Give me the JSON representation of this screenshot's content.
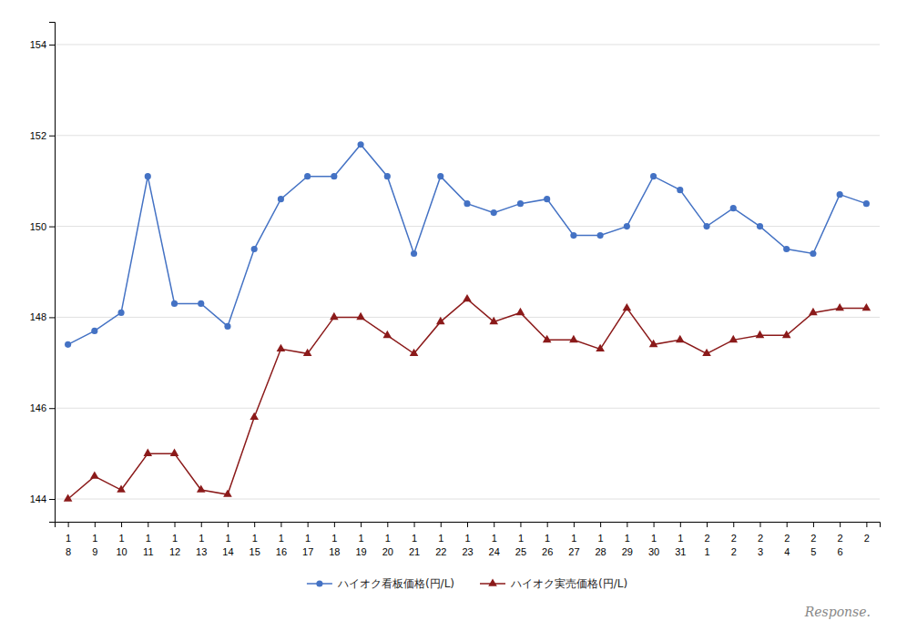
{
  "chart_data": {
    "type": "line",
    "categories": [
      [
        "1",
        "8"
      ],
      [
        "1",
        "9"
      ],
      [
        "1",
        "10"
      ],
      [
        "1",
        "11"
      ],
      [
        "1",
        "12"
      ],
      [
        "1",
        "13"
      ],
      [
        "1",
        "14"
      ],
      [
        "1",
        "15"
      ],
      [
        "1",
        "16"
      ],
      [
        "1",
        "17"
      ],
      [
        "1",
        "18"
      ],
      [
        "1",
        "19"
      ],
      [
        "1",
        "20"
      ],
      [
        "1",
        "21"
      ],
      [
        "1",
        "22"
      ],
      [
        "1",
        "23"
      ],
      [
        "1",
        "24"
      ],
      [
        "1",
        "25"
      ],
      [
        "1",
        "26"
      ],
      [
        "1",
        "27"
      ],
      [
        "1",
        "28"
      ],
      [
        "1",
        "29"
      ],
      [
        "1",
        "30"
      ],
      [
        "1",
        "31"
      ],
      [
        "2",
        "1"
      ],
      [
        "2",
        "2"
      ],
      [
        "2",
        "3"
      ],
      [
        "2",
        "4"
      ],
      [
        "2",
        "5"
      ],
      [
        "2",
        "6"
      ],
      [
        "2"
      ]
    ],
    "series": [
      {
        "name": "ハイオク看板価格(円/L)",
        "color": "#4472c4",
        "marker": "circle",
        "values": [
          147.4,
          147.7,
          148.1,
          151.1,
          148.3,
          148.3,
          147.8,
          149.5,
          150.6,
          151.1,
          151.1,
          151.8,
          151.1,
          149.4,
          151.1,
          150.5,
          150.3,
          150.5,
          150.6,
          149.8,
          149.8,
          150.0,
          151.1,
          150.8,
          150.0,
          150.4,
          150.0,
          149.5,
          149.4,
          150.7,
          150.5
        ]
      },
      {
        "name": "ハイオク実売価格(円/L)",
        "color": "#8b1a1a",
        "marker": "triangle",
        "values": [
          144.0,
          144.5,
          144.2,
          145.0,
          145.0,
          144.2,
          144.1,
          145.8,
          147.3,
          147.2,
          148.0,
          148.0,
          147.6,
          147.2,
          147.9,
          148.4,
          147.9,
          148.1,
          147.5,
          147.5,
          147.3,
          148.2,
          147.4,
          147.5,
          147.2,
          147.5,
          147.6,
          147.6,
          148.1,
          148.2,
          148.2
        ]
      }
    ],
    "ylim": [
      143.5,
      154.5
    ],
    "yticks": [
      144,
      146,
      148,
      150,
      152,
      154
    ],
    "grid": true,
    "legend": "bottom",
    "annotations": [
      "Response."
    ]
  }
}
